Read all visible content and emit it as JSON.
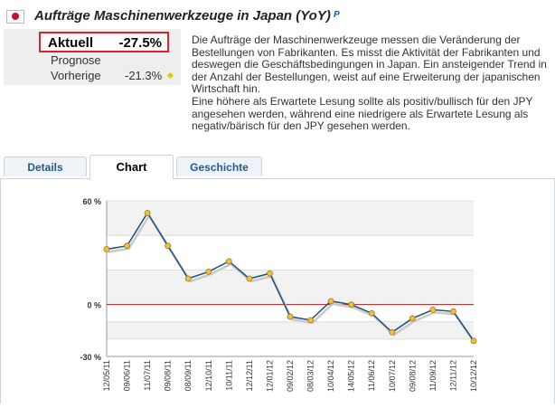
{
  "header": {
    "title": "Aufträge Maschinenwerkzeuge in Japan (YoY)",
    "preliminary_mark": "P",
    "flag_icon": "japan-flag-icon"
  },
  "stats": {
    "current_label": "Aktuell",
    "current_value": "-27.5%",
    "forecast_label": "Prognose",
    "previous_label": "Vorherige",
    "previous_value": "-21.3%",
    "highlight_color": "#e31e24"
  },
  "description": "Die Aufträge der Maschinenwerkzeuge messen die Veränderung der Bestellungen von Fabrikanten. Es misst die Aktivität der Fabrikanten und deswegen die Geschäftsbedingungen in Japan. Ein ansteigender Trend in der Anzahl der Bestellungen, weist auf eine Erweiterung der japanischen Wirtschaft hin.\nEine höhere als Erwartete Lesung sollte als positiv/bullisch für den JPY angesehen werden, während eine niedrigere als Erwartete Lesung als negativ/bärisch für den JPY gesehen werden.",
  "tabs": [
    {
      "label": "Details",
      "active": false
    },
    {
      "label": "Chart",
      "active": true
    },
    {
      "label": "Geschichte",
      "active": false
    }
  ],
  "chart_data": {
    "type": "line",
    "x": [
      "12/05/11",
      "09/06/11",
      "11/07/11",
      "09/08/11",
      "08/09/11",
      "12/10/11",
      "10/11/11",
      "12/12/11",
      "12/01/12",
      "09/02/12",
      "08/03/12",
      "10/04/12",
      "14/05/12",
      "11/06/12",
      "10/07/12",
      "09/08/12",
      "11/09/12",
      "12/11/12",
      "10/12/12"
    ],
    "values": [
      32,
      34,
      53,
      34,
      15,
      19,
      25,
      15,
      18,
      -7,
      -9,
      2,
      0,
      -5,
      -16,
      -8,
      -3,
      -4,
      -21
    ],
    "yticks": [
      {
        "v": 60,
        "label": "60 %"
      },
      {
        "v": 0,
        "label": "0 %"
      },
      {
        "v": -30,
        "label": "-30 %"
      }
    ],
    "ylim": [
      -30,
      60
    ],
    "line_color": "#1f4e79",
    "marker_color": "#f0c040",
    "zero_line_color": "#b22222",
    "grid": true
  }
}
